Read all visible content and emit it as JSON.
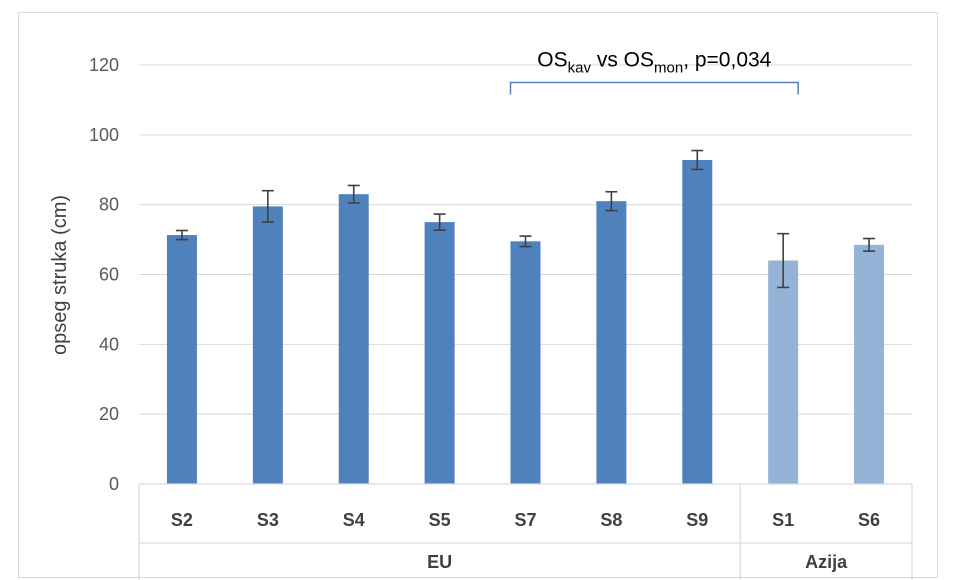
{
  "chart_data": {
    "type": "bar",
    "title": "",
    "xlabel": "",
    "ylabel": "opseg struka (cm)",
    "ylim": [
      0,
      120
    ],
    "yticks": [
      0,
      20,
      40,
      60,
      80,
      100,
      120
    ],
    "grid": true,
    "groups": [
      {
        "label": "EU",
        "categories": [
          "S2",
          "S3",
          "S4",
          "S5",
          "S7",
          "S8",
          "S9"
        ]
      },
      {
        "label": "Azija",
        "categories": [
          "S1",
          "S6"
        ]
      }
    ],
    "categories": [
      "S2",
      "S3",
      "S4",
      "S5",
      "S7",
      "S8",
      "S9",
      "S1",
      "S6"
    ],
    "values": [
      71.3,
      79.5,
      83.0,
      75.0,
      69.5,
      81.0,
      92.8,
      64.0,
      68.5
    ],
    "errors": [
      1.3,
      4.5,
      2.5,
      2.3,
      1.5,
      2.7,
      2.7,
      7.7,
      1.8
    ],
    "bar_colors": [
      "#4f81bd",
      "#4f81bd",
      "#4f81bd",
      "#4f81bd",
      "#4f81bd",
      "#4f81bd",
      "#4f81bd",
      "#95b3d7",
      "#95b3d7"
    ],
    "annotation": {
      "parts": [
        {
          "text": "OS",
          "sub": false
        },
        {
          "text": "kav",
          "sub": true
        },
        {
          "text": " vs OS",
          "sub": false
        },
        {
          "text": "mon",
          "sub": true
        },
        {
          "text": ", p=0,034",
          "sub": false
        }
      ],
      "from_category": "S7",
      "to_category": "S1",
      "bracket_y": 115,
      "bracket_color": "#4f81bd"
    }
  }
}
